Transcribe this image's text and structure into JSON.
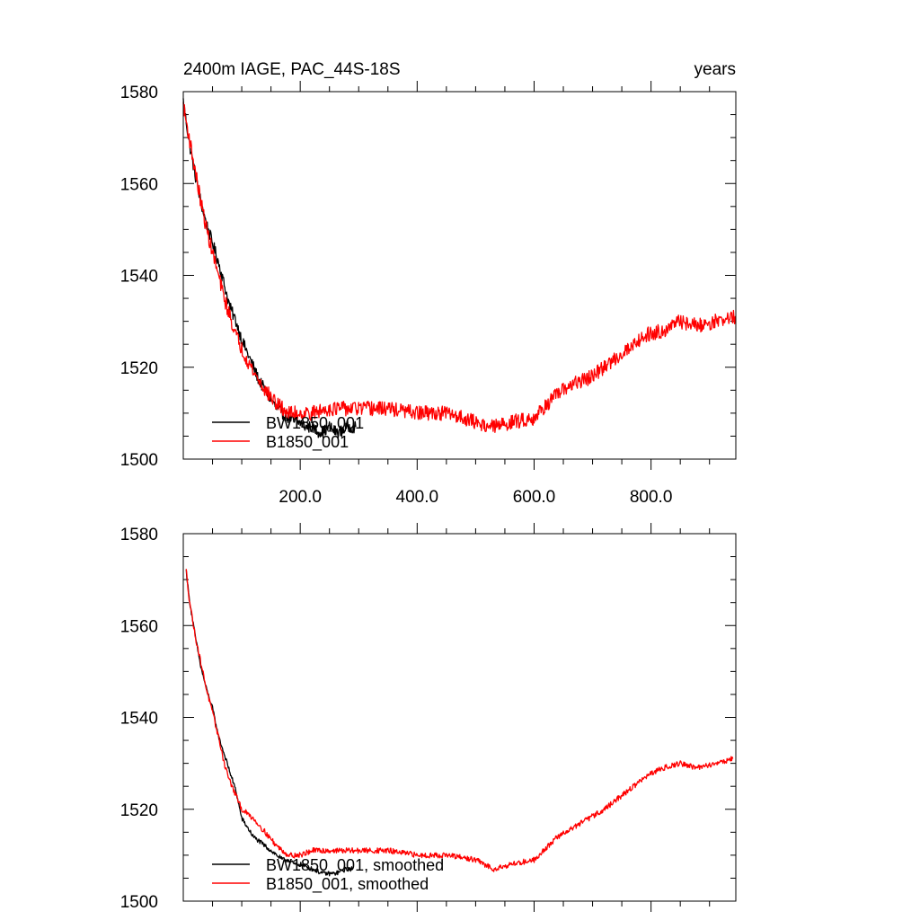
{
  "chart_data": [
    {
      "type": "line",
      "title_left": "2400m IAGE, PAC_44S-18S",
      "title_right": "years",
      "xlim": [
        0,
        945
      ],
      "ylim": [
        1500,
        1580
      ],
      "y_ticks": [
        1500,
        1520,
        1540,
        1560,
        1580
      ],
      "x_tick_labels": [
        "200.0",
        "400.0",
        "600.0",
        "800.0"
      ],
      "x_tick_values": [
        200,
        400,
        600,
        800
      ],
      "legend_position": "bottom-left",
      "series": [
        {
          "name": "BW1850_001",
          "color": "#000000",
          "noise": 1.3,
          "points": [
            [
              0,
              1578
            ],
            [
              10,
              1569
            ],
            [
              20,
              1562
            ],
            [
              30,
              1556
            ],
            [
              40,
              1551
            ],
            [
              50,
              1547
            ],
            [
              60,
              1543
            ],
            [
              70,
              1538
            ],
            [
              80,
              1533
            ],
            [
              90,
              1530
            ],
            [
              100,
              1526
            ],
            [
              110,
              1523
            ],
            [
              120,
              1520
            ],
            [
              130,
              1517
            ],
            [
              140,
              1515
            ],
            [
              150,
              1513
            ],
            [
              160,
              1511
            ],
            [
              170,
              1510
            ],
            [
              180,
              1509
            ],
            [
              190,
              1508
            ],
            [
              200,
              1508
            ],
            [
              210,
              1507
            ],
            [
              220,
              1507
            ],
            [
              230,
              1506
            ],
            [
              240,
              1506
            ],
            [
              250,
              1507
            ],
            [
              260,
              1506
            ],
            [
              270,
              1506
            ],
            [
              280,
              1507
            ],
            [
              290,
              1507
            ],
            [
              295,
              1507
            ]
          ]
        },
        {
          "name": "B1850_001",
          "color": "#ff0000",
          "noise": 1.6,
          "points": [
            [
              0,
              1577
            ],
            [
              10,
              1570
            ],
            [
              20,
              1563
            ],
            [
              30,
              1556
            ],
            [
              40,
              1550
            ],
            [
              50,
              1545
            ],
            [
              60,
              1540
            ],
            [
              70,
              1535
            ],
            [
              80,
              1531
            ],
            [
              90,
              1527
            ],
            [
              100,
              1524
            ],
            [
              120,
              1519
            ],
            [
              140,
              1515
            ],
            [
              160,
              1512
            ],
            [
              180,
              1510
            ],
            [
              200,
              1510
            ],
            [
              220,
              1510
            ],
            [
              250,
              1511
            ],
            [
              300,
              1511
            ],
            [
              350,
              1511
            ],
            [
              400,
              1510
            ],
            [
              450,
              1510
            ],
            [
              480,
              1509
            ],
            [
              500,
              1508
            ],
            [
              530,
              1507
            ],
            [
              560,
              1508
            ],
            [
              600,
              1509
            ],
            [
              630,
              1513
            ],
            [
              660,
              1516
            ],
            [
              700,
              1518
            ],
            [
              730,
              1521
            ],
            [
              760,
              1524
            ],
            [
              790,
              1527
            ],
            [
              820,
              1528
            ],
            [
              850,
              1530
            ],
            [
              880,
              1529
            ],
            [
              910,
              1530
            ],
            [
              945,
              1531
            ]
          ]
        }
      ]
    },
    {
      "type": "line",
      "xlim": [
        0,
        945
      ],
      "ylim": [
        1500,
        1580
      ],
      "y_ticks": [
        1500,
        1520,
        1540,
        1560,
        1580
      ],
      "x_tick_values": [
        200,
        400,
        600,
        800
      ],
      "legend_position": "bottom-left",
      "series": [
        {
          "name": "BW1850_001, smoothed",
          "color": "#000000",
          "noise": 0.5,
          "points": [
            [
              5,
              1572
            ],
            [
              10,
              1566
            ],
            [
              20,
              1558
            ],
            [
              30,
              1551
            ],
            [
              40,
              1546
            ],
            [
              50,
              1542
            ],
            [
              60,
              1536
            ],
            [
              70,
              1532
            ],
            [
              80,
              1528
            ],
            [
              90,
              1524
            ],
            [
              100,
              1518
            ],
            [
              110,
              1516
            ],
            [
              120,
              1514
            ],
            [
              130,
              1513
            ],
            [
              140,
              1512
            ],
            [
              150,
              1511
            ],
            [
              160,
              1510
            ],
            [
              170,
              1509
            ],
            [
              180,
              1509
            ],
            [
              190,
              1508
            ],
            [
              200,
              1508
            ],
            [
              220,
              1507
            ],
            [
              240,
              1506
            ],
            [
              260,
              1506
            ],
            [
              280,
              1507
            ],
            [
              290,
              1507
            ]
          ]
        },
        {
          "name": "B1850_001, smoothed",
          "color": "#ff0000",
          "noise": 0.6,
          "points": [
            [
              5,
              1572
            ],
            [
              10,
              1566
            ],
            [
              20,
              1558
            ],
            [
              30,
              1552
            ],
            [
              40,
              1546
            ],
            [
              50,
              1541
            ],
            [
              60,
              1536
            ],
            [
              70,
              1530
            ],
            [
              80,
              1526
            ],
            [
              90,
              1523
            ],
            [
              100,
              1520
            ],
            [
              120,
              1518
            ],
            [
              140,
              1515
            ],
            [
              160,
              1512
            ],
            [
              180,
              1510
            ],
            [
              200,
              1510
            ],
            [
              220,
              1511
            ],
            [
              250,
              1511
            ],
            [
              300,
              1511
            ],
            [
              350,
              1511
            ],
            [
              400,
              1510
            ],
            [
              450,
              1510
            ],
            [
              500,
              1509
            ],
            [
              530,
              1507
            ],
            [
              560,
              1508
            ],
            [
              600,
              1509
            ],
            [
              640,
              1514
            ],
            [
              680,
              1517
            ],
            [
              720,
              1520
            ],
            [
              760,
              1524
            ],
            [
              790,
              1527
            ],
            [
              820,
              1529
            ],
            [
              850,
              1530
            ],
            [
              880,
              1529
            ],
            [
              910,
              1530
            ],
            [
              940,
              1531
            ]
          ]
        }
      ]
    }
  ]
}
